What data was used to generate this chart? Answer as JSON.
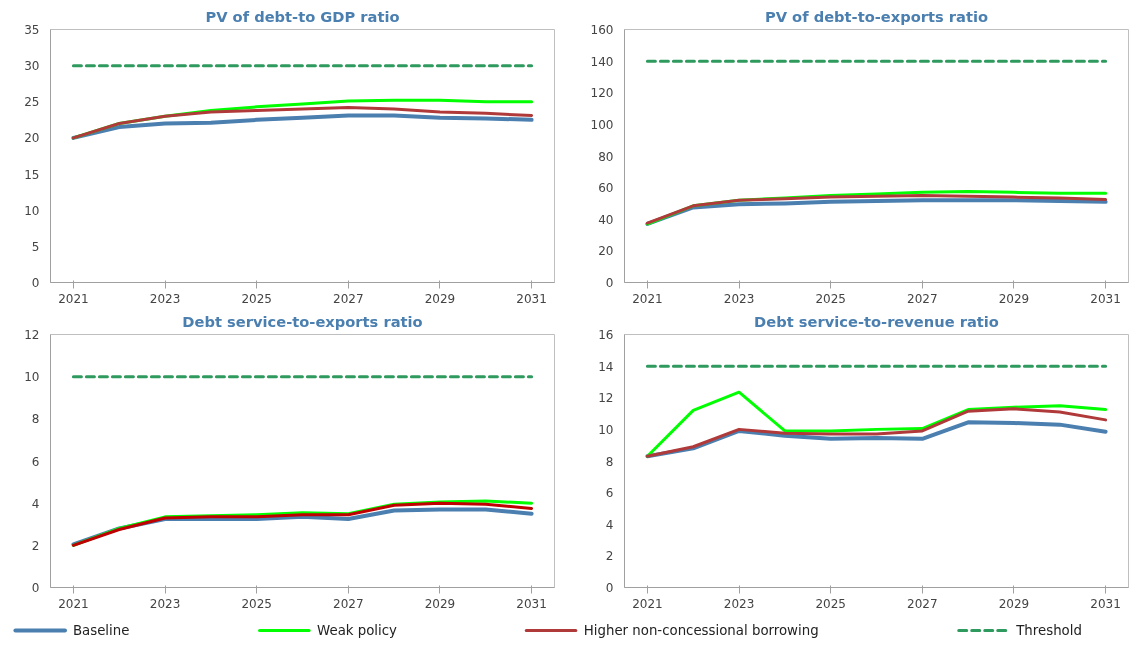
{
  "chart_data": [
    {
      "type": "line",
      "title": "PV of debt-to GDP ratio",
      "x": [
        2021,
        2022,
        2023,
        2024,
        2025,
        2026,
        2027,
        2028,
        2029,
        2030,
        2031
      ],
      "xlim": [
        2020.5,
        2031.5
      ],
      "xticks": [
        2021,
        2023,
        2025,
        2027,
        2029,
        2031
      ],
      "ylim": [
        0,
        35
      ],
      "yticks": [
        0,
        5,
        10,
        15,
        20,
        25,
        30,
        35
      ],
      "grid": false,
      "series": [
        {
          "color": "#4a7fb0",
          "values": [
            20,
            21.5,
            22,
            22.1,
            22.5,
            22.8,
            23.1,
            23.1,
            22.8,
            22.7,
            22.5
          ]
        },
        {
          "color": "#00ff00",
          "values": [
            20,
            22,
            23,
            23.8,
            24.3,
            24.7,
            25.1,
            25.2,
            25.2,
            25.0,
            25.0
          ]
        },
        {
          "color": "#b03a3a",
          "values": [
            20,
            22,
            23,
            23.6,
            23.8,
            24.0,
            24.2,
            24.0,
            23.6,
            23.4,
            23.1
          ]
        },
        {
          "color": "#2e9a5e",
          "line_style": "dashed",
          "values": [
            30,
            30,
            30,
            30,
            30,
            30,
            30,
            30,
            30,
            30,
            30
          ]
        }
      ]
    },
    {
      "type": "line",
      "title": "PV of debt-to-exports ratio",
      "x": [
        2021,
        2022,
        2023,
        2024,
        2025,
        2026,
        2027,
        2028,
        2029,
        2030,
        2031
      ],
      "xlim": [
        2020.5,
        2031.5
      ],
      "xticks": [
        2021,
        2023,
        2025,
        2027,
        2029,
        2031
      ],
      "ylim": [
        0,
        160
      ],
      "yticks": [
        0,
        20,
        40,
        60,
        80,
        100,
        120,
        140,
        160
      ],
      "grid": false,
      "series": [
        {
          "color": "#4a7fb0",
          "values": [
            37,
            47.5,
            49.5,
            50,
            51,
            51.5,
            52,
            52,
            52,
            51.5,
            51
          ]
        },
        {
          "color": "#00ff00",
          "values": [
            37,
            48.5,
            52,
            53.5,
            55,
            56,
            57,
            57.5,
            57,
            56.5,
            56.5
          ]
        },
        {
          "color": "#b03a3a",
          "values": [
            37.5,
            48.5,
            52,
            53,
            54,
            54.5,
            55,
            54.5,
            54,
            53.5,
            52.5
          ]
        },
        {
          "color": "#2e9a5e",
          "line_style": "dashed",
          "values": [
            140,
            140,
            140,
            140,
            140,
            140,
            140,
            140,
            140,
            140,
            140
          ]
        }
      ]
    },
    {
      "type": "line",
      "title": "Debt service-to-exports ratio",
      "x": [
        2021,
        2022,
        2023,
        2024,
        2025,
        2026,
        2027,
        2028,
        2029,
        2030,
        2031
      ],
      "xlim": [
        2020.5,
        2031.5
      ],
      "xticks": [
        2021,
        2023,
        2025,
        2027,
        2029,
        2031
      ],
      "ylim": [
        0,
        12
      ],
      "yticks": [
        0,
        2,
        4,
        6,
        8,
        10,
        12
      ],
      "grid": false,
      "series": [
        {
          "color": "#4a7fb0",
          "values": [
            2.05,
            2.8,
            3.25,
            3.25,
            3.25,
            3.35,
            3.25,
            3.65,
            3.7,
            3.7,
            3.5
          ]
        },
        {
          "color": "#00ff00",
          "values": [
            2.0,
            2.8,
            3.35,
            3.4,
            3.45,
            3.55,
            3.5,
            3.95,
            4.05,
            4.1,
            4.0
          ]
        },
        {
          "color": "#c00000",
          "values": [
            2.0,
            2.75,
            3.3,
            3.35,
            3.35,
            3.45,
            3.45,
            3.9,
            4.0,
            3.95,
            3.75
          ]
        },
        {
          "color": "#2e9a5e",
          "line_style": "dashed",
          "values": [
            10,
            10,
            10,
            10,
            10,
            10,
            10,
            10,
            10,
            10,
            10
          ]
        }
      ]
    },
    {
      "type": "line",
      "title": "Debt service-to-revenue ratio",
      "x": [
        2021,
        2022,
        2023,
        2024,
        2025,
        2026,
        2027,
        2028,
        2029,
        2030,
        2031
      ],
      "xlim": [
        2020.5,
        2031.5
      ],
      "xticks": [
        2021,
        2023,
        2025,
        2027,
        2029,
        2031
      ],
      "ylim": [
        0,
        16
      ],
      "yticks": [
        0,
        2,
        4,
        6,
        8,
        10,
        12,
        14,
        16
      ],
      "grid": false,
      "legend": "bottom",
      "series": [
        {
          "name": "Baseline",
          "color": "#4a7fb0",
          "values": [
            8.3,
            8.8,
            9.9,
            9.6,
            9.4,
            9.45,
            9.4,
            10.45,
            10.4,
            10.3,
            9.85
          ]
        },
        {
          "name": "Weak policy",
          "color": "#00ff00",
          "values": [
            8.3,
            11.2,
            12.35,
            9.9,
            9.9,
            10.0,
            10.05,
            11.25,
            11.4,
            11.5,
            11.25
          ]
        },
        {
          "name": "Higher non-concessional borrowing",
          "color": "#b03a3a",
          "values": [
            8.3,
            8.9,
            10.0,
            9.75,
            9.7,
            9.7,
            9.9,
            11.15,
            11.3,
            11.1,
            10.6
          ]
        },
        {
          "name": "Threshold",
          "color": "#2e9a5e",
          "line_style": "dashed",
          "values": [
            14,
            14,
            14,
            14,
            14,
            14,
            14,
            14,
            14,
            14,
            14
          ]
        }
      ]
    }
  ]
}
